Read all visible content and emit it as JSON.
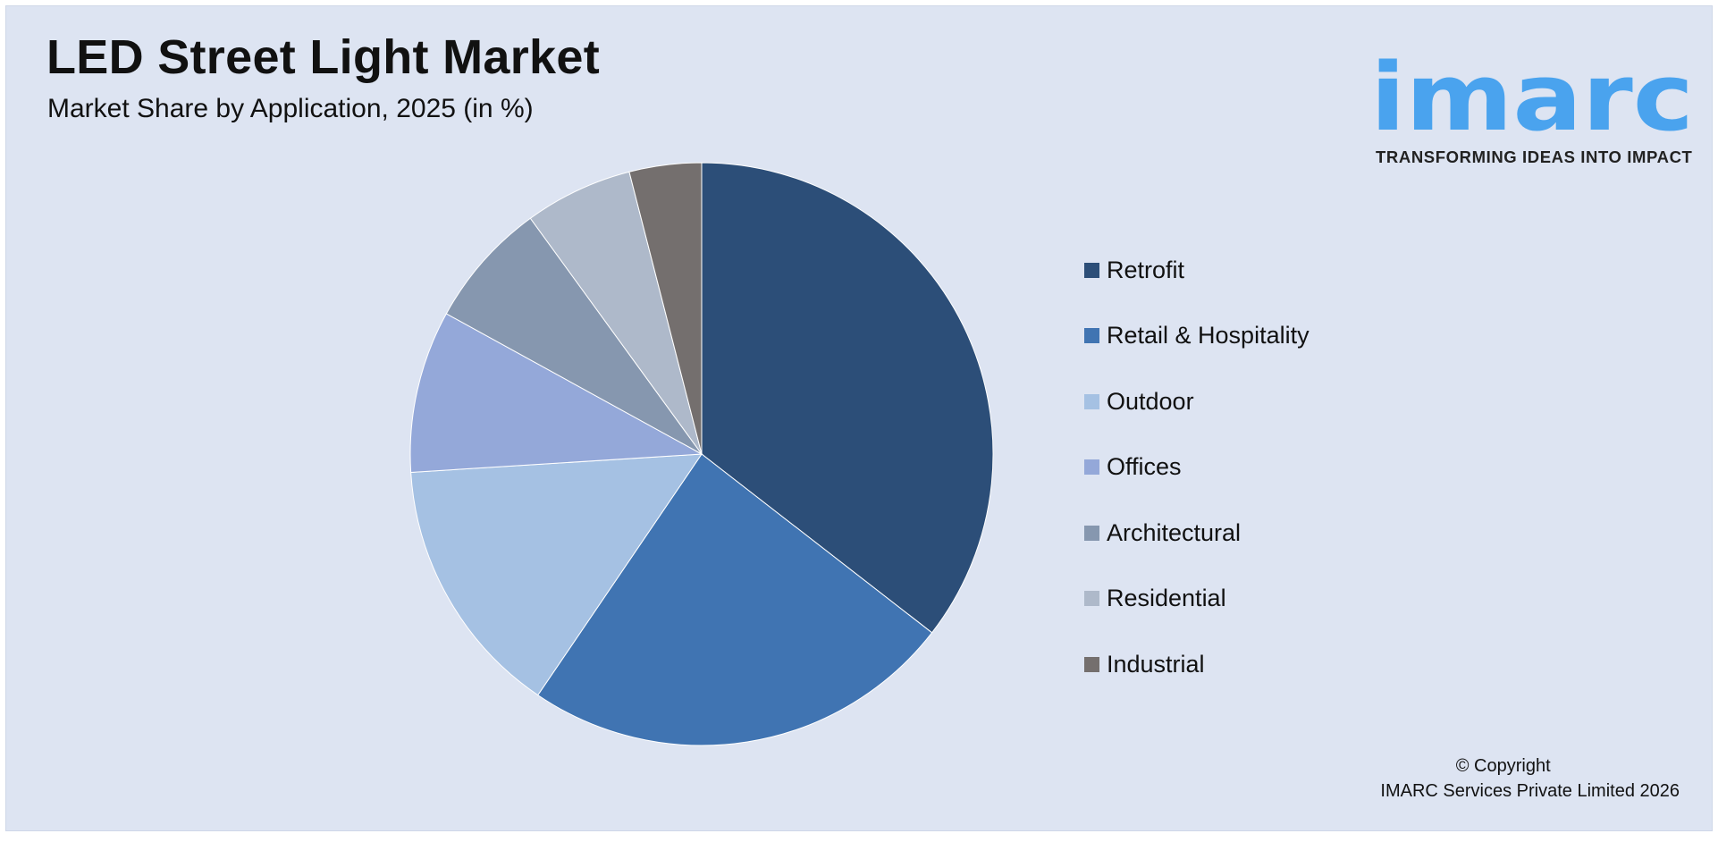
{
  "header": {
    "title": "LED Street Light Market",
    "subtitle": "Market Share by Application, 2025 (in %)"
  },
  "logo": {
    "brand": "imarc",
    "tagline": "TRANSFORMING IDEAS INTO IMPACT",
    "color": "#4aa3ee"
  },
  "chart_data": {
    "type": "pie",
    "categories": [
      "Retrofit",
      "Retail & Hospitality",
      "Outdoor",
      "Offices",
      "Architectural",
      "Residential",
      "Industrial"
    ],
    "values": [
      35.5,
      24.0,
      14.5,
      9.0,
      7.0,
      6.0,
      4.0
    ],
    "colors": [
      "#2c4e78",
      "#4074b2",
      "#a5c1e3",
      "#94a8d9",
      "#8697af",
      "#aeb9ca",
      "#746f6e"
    ],
    "start_angle_deg": 0,
    "direction": "clockwise",
    "legend_position": "right"
  },
  "footer": {
    "copyright_line1": "© Copyright",
    "copyright_line2": "IMARC Services Private Limited 2026"
  }
}
